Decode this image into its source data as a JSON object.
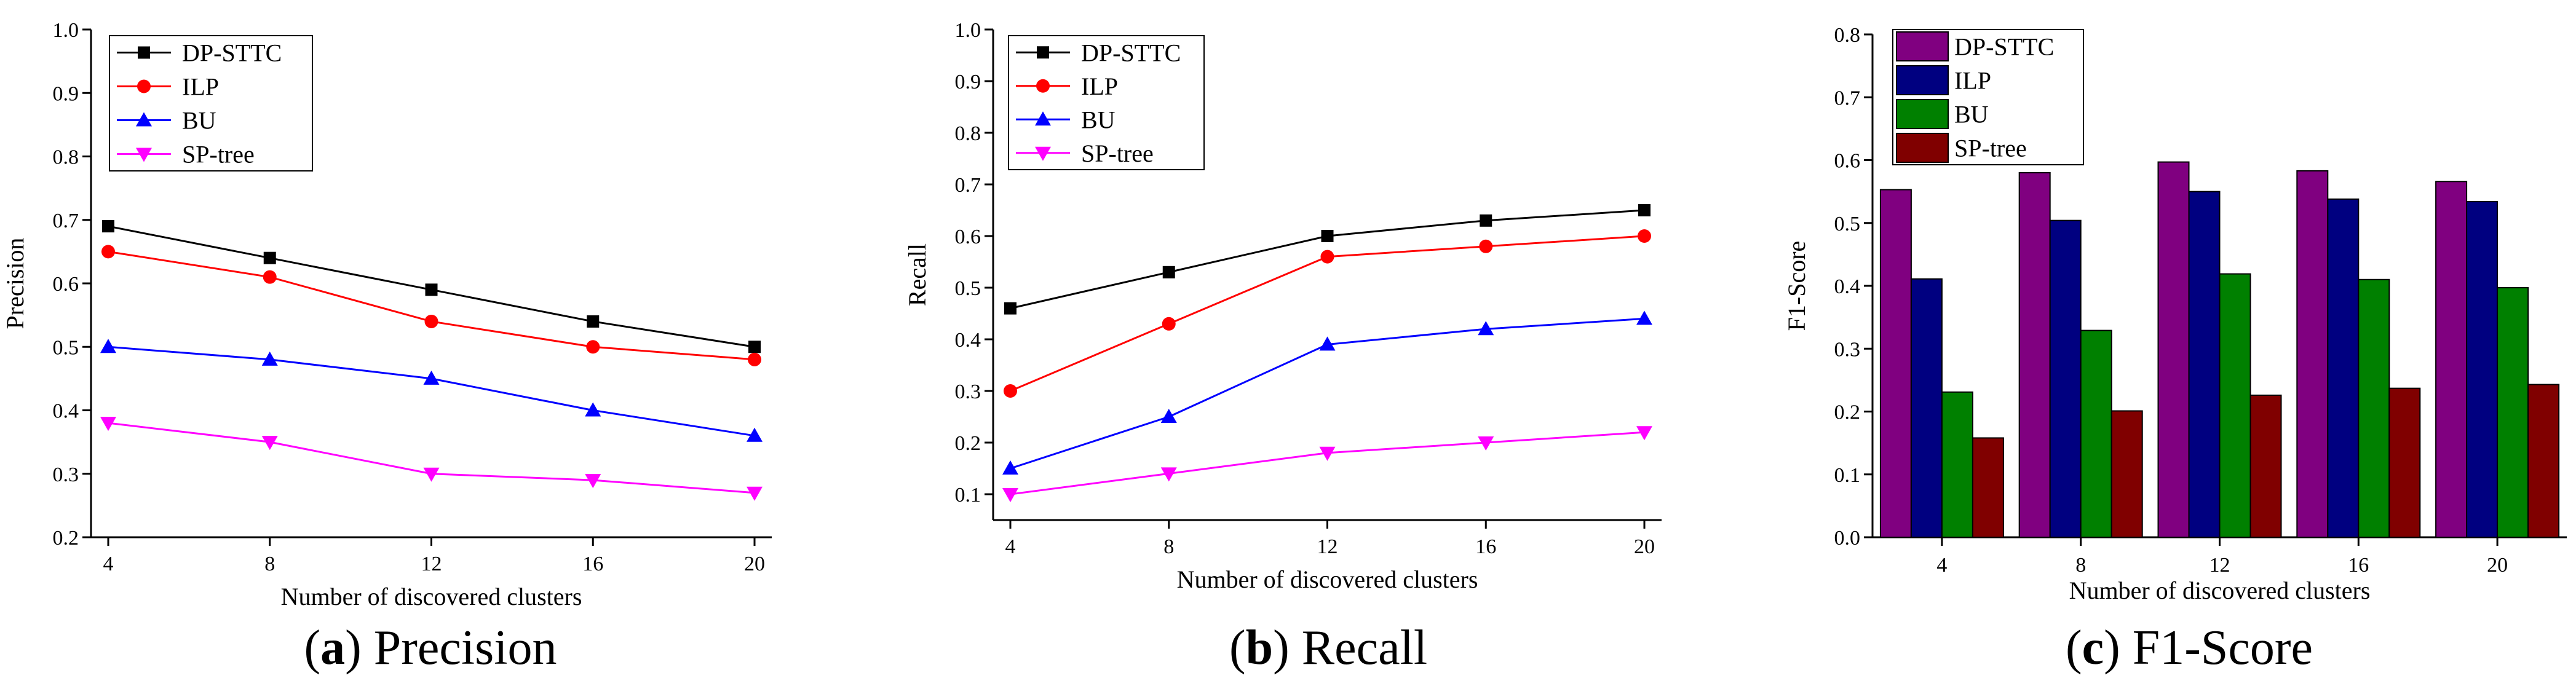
{
  "chart_data": [
    {
      "type": "line",
      "caption": {
        "letter": "a",
        "text": "Precision"
      },
      "x": [
        4,
        8,
        12,
        16,
        20
      ],
      "xticks": [
        "4",
        "8",
        "12",
        "16",
        "20"
      ],
      "xlabel": "Number of discovered clusters",
      "ylabel": "Precision",
      "ylim": [
        0.2,
        1.0
      ],
      "yticks": [
        "0.2",
        "0.3",
        "0.4",
        "0.5",
        "0.6",
        "0.7",
        "0.8",
        "0.9",
        "1.0"
      ],
      "legend_position": "top-left",
      "series": [
        {
          "name": "DP-STTC",
          "values": [
            0.69,
            0.64,
            0.59,
            0.54,
            0.5
          ],
          "color": "#000000",
          "marker": "square"
        },
        {
          "name": "ILP",
          "values": [
            0.65,
            0.61,
            0.54,
            0.5,
            0.48
          ],
          "color": "#ff0000",
          "marker": "circle"
        },
        {
          "name": "BU",
          "values": [
            0.5,
            0.48,
            0.45,
            0.4,
            0.36
          ],
          "color": "#0000ff",
          "marker": "triangle-up"
        },
        {
          "name": "SP-tree",
          "values": [
            0.38,
            0.35,
            0.3,
            0.29,
            0.27
          ],
          "color": "#ff00ff",
          "marker": "triangle-down"
        }
      ]
    },
    {
      "type": "line",
      "caption": {
        "letter": "b",
        "text": "Recall"
      },
      "x": [
        4,
        8,
        12,
        16,
        20
      ],
      "xticks": [
        "4",
        "8",
        "12",
        "16",
        "20"
      ],
      "xlabel": "Number of discovered clusters",
      "ylabel": "Recall",
      "ylim": [
        0.05,
        1.0
      ],
      "yticks": [
        "0.1",
        "0.2",
        "0.3",
        "0.4",
        "0.5",
        "0.6",
        "0.7",
        "0.8",
        "0.9",
        "1.0"
      ],
      "legend_position": "top-left",
      "series": [
        {
          "name": "DP-STTC",
          "values": [
            0.46,
            0.53,
            0.6,
            0.63,
            0.65
          ],
          "color": "#000000",
          "marker": "square"
        },
        {
          "name": "ILP",
          "values": [
            0.3,
            0.43,
            0.56,
            0.58,
            0.6
          ],
          "color": "#ff0000",
          "marker": "circle"
        },
        {
          "name": "BU",
          "values": [
            0.15,
            0.25,
            0.39,
            0.42,
            0.44
          ],
          "color": "#0000ff",
          "marker": "triangle-up"
        },
        {
          "name": "SP-tree",
          "values": [
            0.1,
            0.14,
            0.18,
            0.2,
            0.22
          ],
          "color": "#ff00ff",
          "marker": "triangle-down"
        }
      ]
    },
    {
      "type": "bar",
      "caption": {
        "letter": "c",
        "text": "F1-Score"
      },
      "categories": [
        "4",
        "8",
        "12",
        "16",
        "20"
      ],
      "xlabel": "Number of discovered clusters",
      "ylabel": "F1-Score",
      "ylim": [
        0.0,
        0.8
      ],
      "yticks": [
        "0.0",
        "0.1",
        "0.2",
        "0.3",
        "0.4",
        "0.5",
        "0.6",
        "0.7",
        "0.8"
      ],
      "legend_position": "top-left",
      "series": [
        {
          "name": "DP-STTC",
          "values": [
            0.553,
            0.58,
            0.597,
            0.583,
            0.566
          ],
          "color": "#800080"
        },
        {
          "name": "ILP",
          "values": [
            0.411,
            0.504,
            0.55,
            0.538,
            0.534
          ],
          "color": "#000080"
        },
        {
          "name": "BU",
          "values": [
            0.231,
            0.329,
            0.419,
            0.41,
            0.397
          ],
          "color": "#008000"
        },
        {
          "name": "SP-tree",
          "values": [
            0.158,
            0.201,
            0.226,
            0.237,
            0.243
          ],
          "color": "#800000"
        }
      ]
    }
  ]
}
